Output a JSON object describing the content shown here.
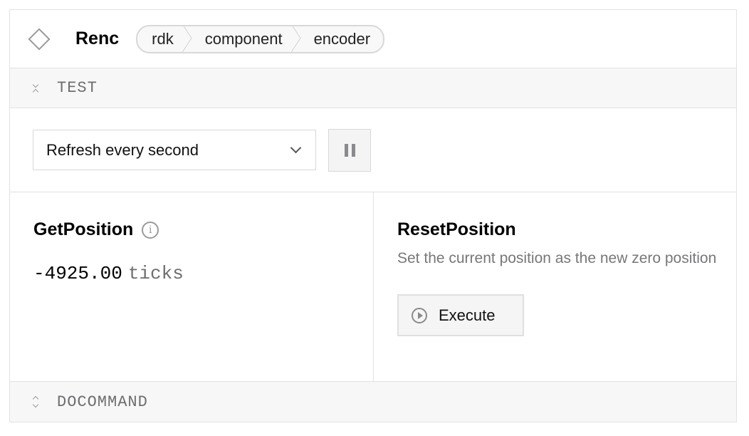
{
  "header": {
    "icon": "diamond-icon",
    "title": "Renc",
    "breadcrumb": [
      "rdk",
      "component",
      "encoder"
    ]
  },
  "test_section": {
    "label": "TEST",
    "icon": "collapse-icon",
    "expanded": true
  },
  "controls": {
    "refresh_select": {
      "value": "Refresh every second"
    },
    "pause_icon": "pause-icon"
  },
  "get_position": {
    "title": "GetPosition",
    "value": "-4925.00",
    "unit": "ticks"
  },
  "reset_position": {
    "title": "ResetPosition",
    "description": "Set the current position as the new zero position",
    "button_label": "Execute"
  },
  "docommand_section": {
    "label": "DOCOMMAND",
    "icon": "expand-icon",
    "expanded": false
  }
}
